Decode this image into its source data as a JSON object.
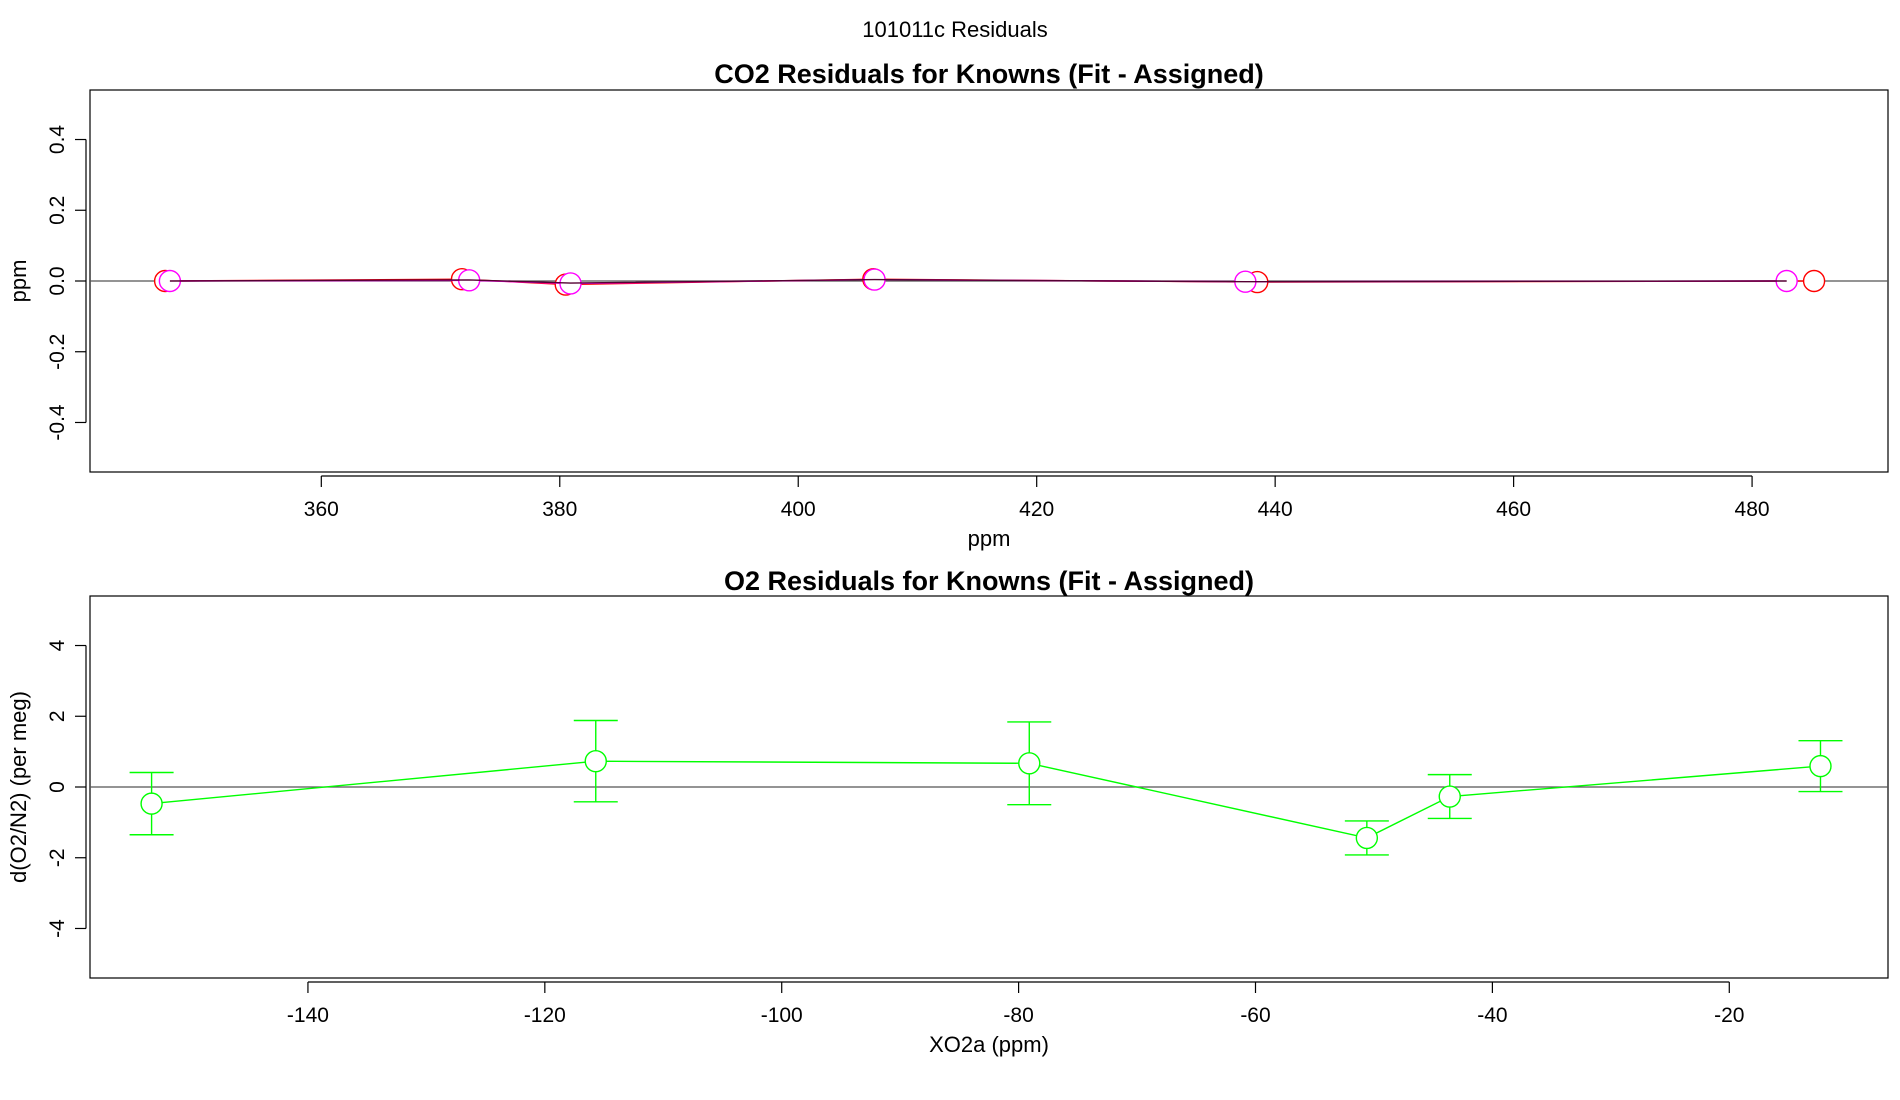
{
  "suptitle": "101011c  Residuals",
  "chart_data": [
    {
      "id": "co2",
      "type": "line",
      "title": "CO2 Residuals for Knowns (Fit - Assigned)",
      "xlabel": "ppm",
      "ylabel": "ppm",
      "xlim": [
        340.6,
        491.4
      ],
      "ylim": [
        -0.54,
        0.54
      ],
      "xticks": [
        360,
        380,
        400,
        420,
        440,
        460,
        480
      ],
      "xtick_labels": [
        "360",
        "380",
        "400",
        "420",
        "440",
        "460",
        "480"
      ],
      "yticks": [
        -0.4,
        -0.2,
        0.0,
        0.2,
        0.4
      ],
      "ytick_labels": [
        "-0.4",
        "-0.2",
        "0.0",
        "0.2",
        "0.4"
      ],
      "hline": 0,
      "series": [
        {
          "name": "red",
          "color": "#ff0000",
          "x": [
            346.9,
            371.8,
            380.5,
            406.3,
            438.5,
            485.2
          ],
          "y": [
            0.0,
            0.005,
            -0.01,
            0.005,
            -0.003,
            0.0
          ]
        },
        {
          "name": "magenta",
          "color": "#ff00ff",
          "x": [
            347.3,
            372.4,
            380.9,
            406.4,
            437.5,
            482.9
          ],
          "y": [
            0.0,
            0.002,
            -0.007,
            0.004,
            -0.002,
            0.0
          ]
        },
        {
          "name": "dark",
          "color": "#550033",
          "x": [
            347.3,
            372.4,
            380.9,
            406.4,
            437.5,
            482.9
          ],
          "y": [
            0.0,
            0.003,
            -0.006,
            0.004,
            -0.002,
            0.0
          ]
        }
      ]
    },
    {
      "id": "o2",
      "type": "line",
      "title": "O2 Residuals for Knowns (Fit - Assigned)",
      "xlabel": "XO2a (ppm)",
      "ylabel": "d(O2/N2) (per meg)",
      "xlim": [
        -158.4,
        -6.6
      ],
      "ylim": [
        -5.4,
        5.4
      ],
      "xticks": [
        -140,
        -120,
        -100,
        -80,
        -60,
        -40,
        -20
      ],
      "xtick_labels": [
        "-140",
        "-120",
        "-100",
        "-80",
        "-60",
        "-40",
        "-20"
      ],
      "yticks": [
        -4,
        -2,
        0,
        2,
        4
      ],
      "ytick_labels": [
        "-4",
        "-2",
        "0",
        "2",
        "4"
      ],
      "hline": 0,
      "series": [
        {
          "name": "green",
          "color": "#00ff00",
          "x": [
            -153.2,
            -115.7,
            -79.1,
            -50.6,
            -43.6,
            -12.3
          ],
          "y": [
            -0.47,
            0.73,
            0.67,
            -1.44,
            -0.27,
            0.59
          ],
          "err": [
            0.88,
            1.15,
            1.17,
            0.48,
            0.62,
            0.72
          ]
        }
      ]
    }
  ]
}
